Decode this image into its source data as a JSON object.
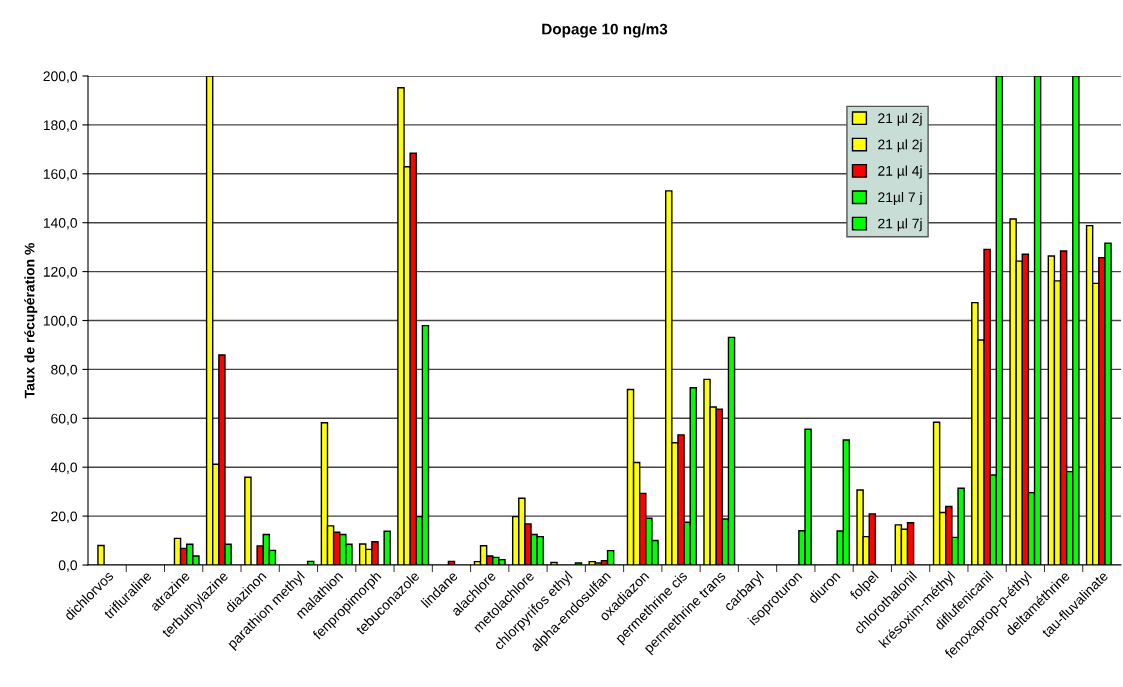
{
  "chart_data": {
    "type": "bar",
    "title": "Dopage 10 ng/m3",
    "ylabel": "Taux de récupération %",
    "categories": [
      "dichlorvos",
      "trifluraline",
      "atrazine",
      "terbuthylazine",
      "diazinon",
      "parathion methyl",
      "malathion",
      "fenpropimorph",
      "tebuconazole",
      "lindane",
      "alachlore",
      "metolachlore",
      "chlorpyrifos ethyl",
      "alpha-endosulfan",
      "oxadiazon",
      "permethrine cis",
      "permethrine trans",
      "carbaryl",
      "isoproturon",
      "diuron",
      "folpel",
      "chlorothalonil",
      "krésoxim-méthyl",
      "diflufenicanil",
      "fenoxaprop-p-éthyl",
      "deltaméthrine",
      "tau-fluvalinate"
    ],
    "series": [
      {
        "name": "21 µl 2j",
        "color": "#ffff00",
        "values": [
          null,
          null,
          null,
          200,
          35.9,
          null,
          58.2,
          8.6,
          195.2,
          null,
          1.4,
          19.8,
          1.0,
          1.4,
          71.8,
          153.0,
          75.9,
          null,
          null,
          null,
          30.7,
          16.4,
          58.4,
          107.3,
          141.5,
          126.4,
          138.8
        ]
      },
      {
        "name": "21 µl 2j",
        "color": "#ffff00",
        "values": [
          8.0,
          null,
          10.9,
          41.2,
          null,
          null,
          16.0,
          6.4,
          162.9,
          null,
          7.9,
          27.3,
          null,
          0.8,
          41.9,
          50.0,
          64.6,
          null,
          null,
          null,
          11.6,
          14.6,
          21.5,
          92.0,
          124.3,
          116.2,
          115.2
        ]
      },
      {
        "name": "21 µl 4j",
        "color": "#ff0000",
        "values": [
          null,
          null,
          6.8,
          85.9,
          7.8,
          null,
          13.4,
          9.5,
          168.4,
          1.5,
          3.7,
          16.8,
          null,
          1.8,
          29.3,
          53.2,
          63.7,
          null,
          null,
          null,
          20.9,
          17.3,
          23.9,
          129.1,
          127.1,
          128.4,
          125.7
        ]
      },
      {
        "name": "21µl 7 j",
        "color": "#00ff00",
        "values": [
          null,
          null,
          8.5,
          8.5,
          12.5,
          null,
          12.5,
          null,
          19.8,
          null,
          3.1,
          12.5,
          null,
          5.9,
          19.1,
          17.5,
          18.8,
          null,
          14.0,
          13.9,
          null,
          null,
          11.3,
          36.8,
          29.6,
          38.2,
          131.6
        ]
      },
      {
        "name": "21 µl 7j",
        "color": "#00ff00",
        "values": [
          null,
          null,
          3.7,
          null,
          6.0,
          1.5,
          8.5,
          13.8,
          97.9,
          null,
          2.2,
          11.6,
          0.8,
          null,
          10.0,
          72.5,
          93.1,
          null,
          55.5,
          51.1,
          null,
          null,
          31.4,
          200,
          200,
          200,
          null
        ]
      }
    ],
    "ylim": [
      0,
      200
    ],
    "yticks": [
      {
        "value": 0,
        "label": "0,0"
      },
      {
        "value": 20,
        "label": "20,0"
      },
      {
        "value": 40,
        "label": "40,0"
      },
      {
        "value": 60,
        "label": "60,0"
      },
      {
        "value": 80,
        "label": "80,0"
      },
      {
        "value": 100,
        "label": "100,0"
      },
      {
        "value": 120,
        "label": "120,0"
      },
      {
        "value": 140,
        "label": "140,0"
      },
      {
        "value": 160,
        "label": "160,0"
      },
      {
        "value": 180,
        "label": "180,0"
      },
      {
        "value": 200,
        "label": "200,0"
      }
    ],
    "grid": "y",
    "legend": "top right"
  }
}
